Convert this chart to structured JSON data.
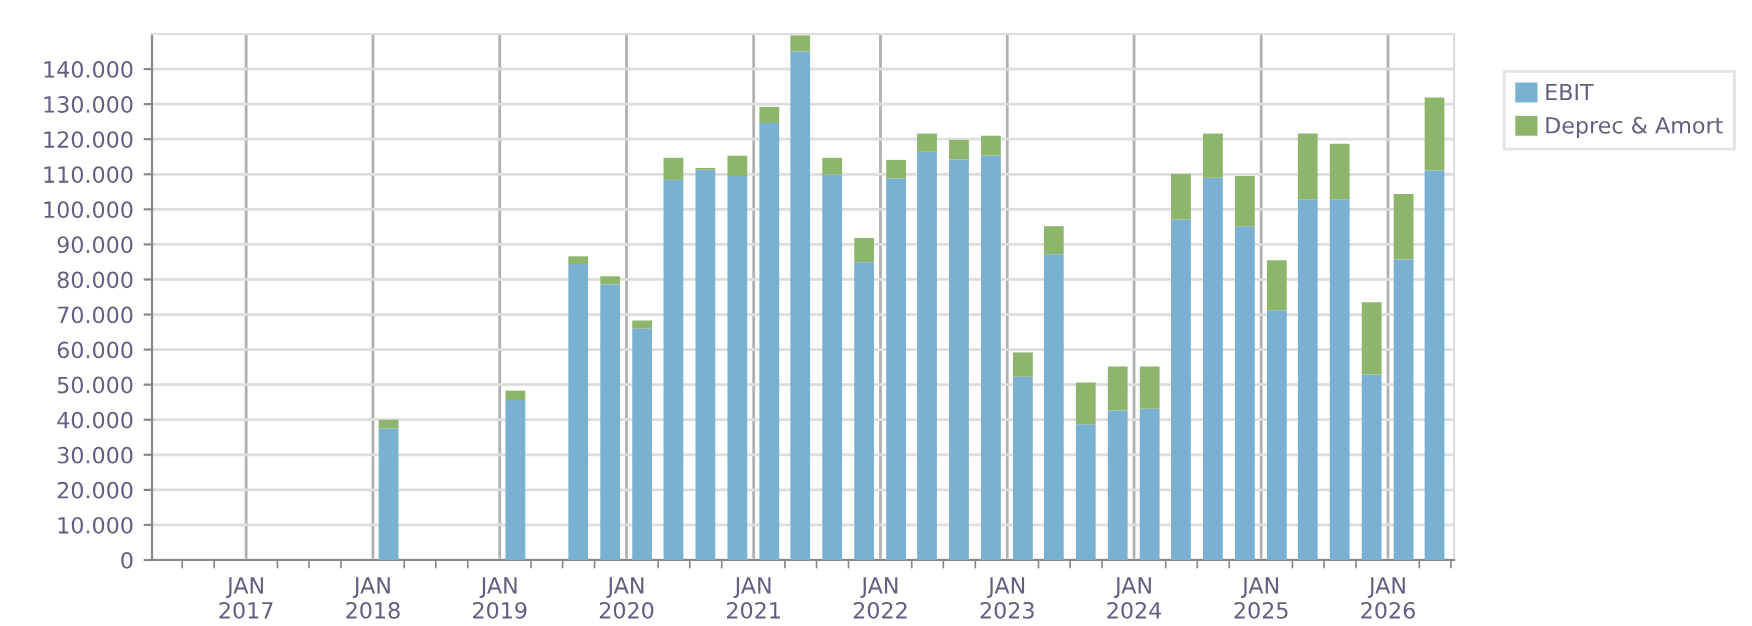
{
  "chart_data": {
    "type": "bar",
    "stacked": true,
    "x": [
      "2018-02-15",
      "2019-02-15",
      "2019-08-15",
      "2019-11-15",
      "2020-02-15",
      "2020-05-15",
      "2020-08-15",
      "2020-11-15",
      "2021-02-15",
      "2021-05-15",
      "2021-08-15",
      "2021-11-15",
      "2022-02-15",
      "2022-05-15",
      "2022-08-15",
      "2022-11-15",
      "2023-02-15",
      "2023-05-15",
      "2023-08-15",
      "2023-11-15",
      "2024-02-15",
      "2024-05-15",
      "2024-08-15",
      "2024-11-15",
      "2025-02-15",
      "2025-05-15",
      "2025-08-15",
      "2025-11-15",
      "2026-02-15",
      "2026-05-15"
    ],
    "series": [
      {
        "name": "EBIT",
        "color": "#7ab0d2",
        "values": [
          37500,
          45600,
          84400,
          78600,
          66000,
          108400,
          111300,
          109500,
          124600,
          145000,
          109900,
          84900,
          108800,
          116400,
          114300,
          115300,
          52300,
          87200,
          38700,
          42600,
          43100,
          97100,
          109000,
          95200,
          71200,
          102900,
          102900,
          52900,
          85700,
          111100
        ]
      },
      {
        "name": "Deprec & Amort",
        "color": "#8db56c",
        "values": [
          2500,
          2700,
          2200,
          2300,
          2300,
          6300,
          500,
          5800,
          4600,
          4600,
          4800,
          6900,
          5300,
          5200,
          5500,
          5700,
          6900,
          8000,
          11900,
          12600,
          12100,
          13000,
          12600,
          14300,
          14300,
          18700,
          15800,
          20600,
          18700,
          20800
        ]
      }
    ],
    "xlim": [
      "2016-04-05",
      "2026-07-10"
    ],
    "xticks": [
      {
        "value": "2016-07-01",
        "label": null
      },
      {
        "value": "2016-10-01",
        "label": null
      },
      {
        "value": "2017-01-01",
        "label": "JAN\n2017"
      },
      {
        "value": "2017-04-01",
        "label": null
      },
      {
        "value": "2017-07-01",
        "label": null
      },
      {
        "value": "2017-10-01",
        "label": null
      },
      {
        "value": "2018-01-01",
        "label": "JAN\n2018"
      },
      {
        "value": "2018-04-01",
        "label": null
      },
      {
        "value": "2018-07-01",
        "label": null
      },
      {
        "value": "2018-10-01",
        "label": null
      },
      {
        "value": "2019-01-01",
        "label": "JAN\n2019"
      },
      {
        "value": "2019-04-01",
        "label": null
      },
      {
        "value": "2019-07-01",
        "label": null
      },
      {
        "value": "2019-10-01",
        "label": null
      },
      {
        "value": "2020-01-01",
        "label": "JAN\n2020"
      },
      {
        "value": "2020-04-01",
        "label": null
      },
      {
        "value": "2020-07-01",
        "label": null
      },
      {
        "value": "2020-10-01",
        "label": null
      },
      {
        "value": "2021-01-01",
        "label": "JAN\n2021"
      },
      {
        "value": "2021-04-01",
        "label": null
      },
      {
        "value": "2021-07-01",
        "label": null
      },
      {
        "value": "2021-10-01",
        "label": null
      },
      {
        "value": "2022-01-01",
        "label": "JAN\n2022"
      },
      {
        "value": "2022-04-01",
        "label": null
      },
      {
        "value": "2022-07-01",
        "label": null
      },
      {
        "value": "2022-10-01",
        "label": null
      },
      {
        "value": "2023-01-01",
        "label": "JAN\n2023"
      },
      {
        "value": "2023-04-01",
        "label": null
      },
      {
        "value": "2023-07-01",
        "label": null
      },
      {
        "value": "2023-10-01",
        "label": null
      },
      {
        "value": "2024-01-01",
        "label": "JAN\n2024"
      },
      {
        "value": "2024-04-01",
        "label": null
      },
      {
        "value": "2024-07-01",
        "label": null
      },
      {
        "value": "2024-10-01",
        "label": null
      },
      {
        "value": "2025-01-01",
        "label": "JAN\n2025"
      },
      {
        "value": "2025-04-01",
        "label": null
      },
      {
        "value": "2025-07-01",
        "label": null
      },
      {
        "value": "2025-10-01",
        "label": null
      },
      {
        "value": "2026-01-01",
        "label": "JAN\n2026"
      },
      {
        "value": "2026-04-01",
        "label": null
      },
      {
        "value": "2026-07-01",
        "label": null
      }
    ],
    "ylim": [
      0,
      150000
    ],
    "yticks": [
      0,
      {
        "value": 10000,
        "label": "10.000"
      },
      {
        "value": 20000,
        "label": "20.000"
      },
      {
        "value": 30000,
        "label": "30.000"
      },
      {
        "value": 40000,
        "label": "40.000"
      },
      {
        "value": 50000,
        "label": "50.000"
      },
      {
        "value": 60000,
        "label": "60.000"
      },
      {
        "value": 70000,
        "label": "70.000"
      },
      {
        "value": 80000,
        "label": "80.000"
      },
      {
        "value": 90000,
        "label": "90.000"
      },
      {
        "value": 100000,
        "label": "100.000"
      },
      {
        "value": 110000,
        "label": "110.000"
      },
      {
        "value": 120000,
        "label": "120.000"
      },
      {
        "value": 130000,
        "label": "130.000"
      },
      {
        "value": 140000,
        "label": "140.000"
      }
    ],
    "grid": true,
    "legend": "right"
  }
}
